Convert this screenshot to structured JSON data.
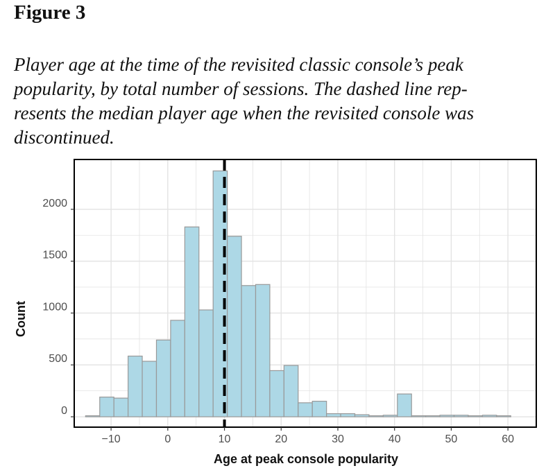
{
  "figure": {
    "label": "Figure 3",
    "caption_lines": [
      "Player age at the time of the revisited classic console’s peak",
      "popularity, by total number of sessions. The dashed line rep-",
      "resents the median player age when the revisited console was",
      "discontinued."
    ]
  },
  "chart_data": {
    "type": "bar",
    "title": "",
    "xlabel": "Age at peak console popularity",
    "ylabel": "Count",
    "xlim": [
      -16.5,
      65
    ],
    "ylim": [
      -100,
      2480
    ],
    "xticks": [
      -10,
      0,
      10,
      20,
      30,
      40,
      50,
      60
    ],
    "xtick_labels": [
      "−10",
      "0",
      "10",
      "20",
      "30",
      "40",
      "50",
      "60"
    ],
    "yticks": [
      0,
      500,
      1000,
      1500,
      2000
    ],
    "ytick_labels": [
      "0",
      "500",
      "1000",
      "1500",
      "2000"
    ],
    "grid": true,
    "bin_width": 2.5,
    "bin_start": -14.5,
    "values": [
      10,
      190,
      180,
      585,
      535,
      740,
      930,
      1830,
      1030,
      2370,
      1740,
      1265,
      1275,
      445,
      495,
      135,
      150,
      30,
      30,
      20,
      10,
      15,
      220,
      10,
      10,
      15,
      15,
      10,
      15,
      10
    ],
    "median_line": {
      "x": 10,
      "style": "dashed"
    },
    "colors": {
      "bar_fill": "#add8e6",
      "bar_edge": "#999999",
      "median": "#000000",
      "grid": "#e3e3e3",
      "frame": "#000000"
    }
  }
}
